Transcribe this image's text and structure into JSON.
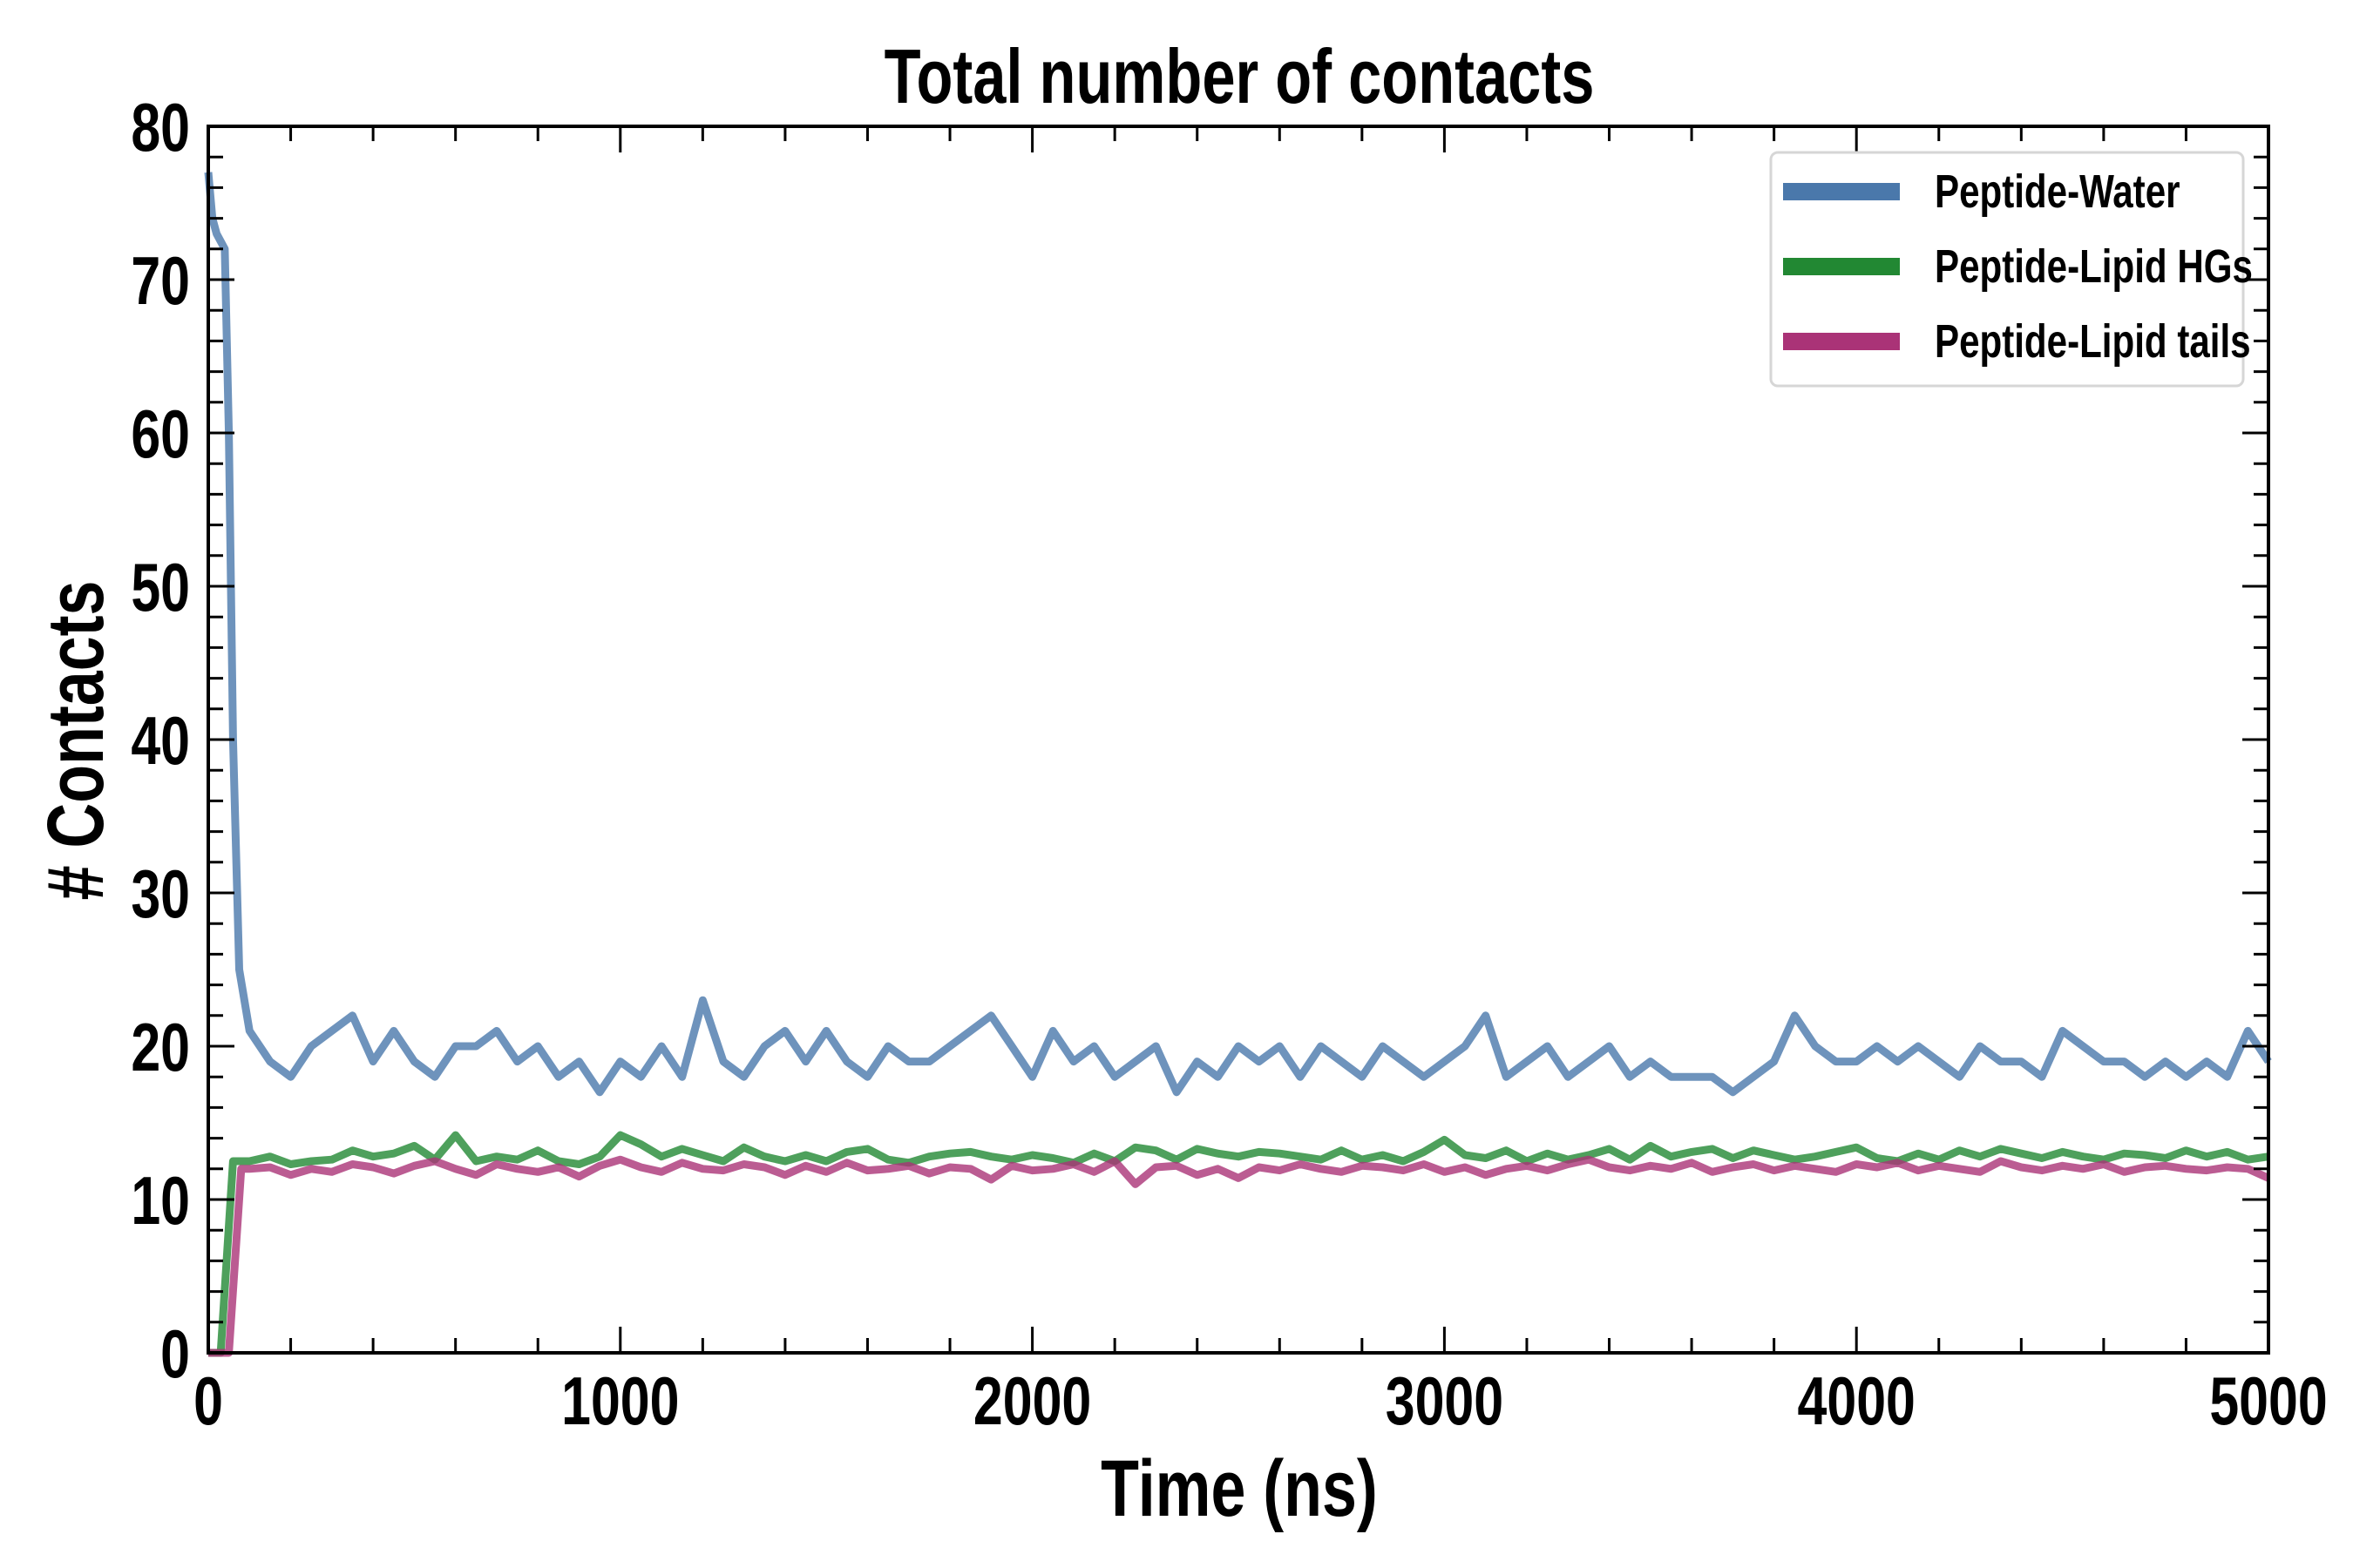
{
  "chart_data": {
    "type": "line",
    "title": "Total number of contacts",
    "xlabel": "Time (ns)",
    "ylabel": "# Contacts",
    "xlim": [
      0,
      5000
    ],
    "ylim": [
      0,
      80
    ],
    "xticks": [
      "0",
      "1000",
      "2000",
      "3000",
      "4000",
      "5000"
    ],
    "yticks": [
      "0",
      "10",
      "20",
      "30",
      "40",
      "50",
      "60",
      "70",
      "80"
    ],
    "grid": false,
    "legend_position": "top-right",
    "series": [
      {
        "name": "Peptide-Water",
        "color": "#4a78ab",
        "early_x": [
          0,
          10,
          20,
          30,
          40,
          50,
          60,
          75
        ],
        "early_y": [
          77,
          74,
          73,
          72.5,
          72,
          60,
          40,
          25
        ],
        "x_start": 100,
        "x_step": 50,
        "values": [
          21,
          19,
          18,
          20,
          21,
          22,
          19,
          21,
          19,
          18,
          20,
          20,
          21,
          19,
          20,
          18,
          19,
          17,
          19,
          18,
          20,
          18,
          23,
          19,
          18,
          20,
          21,
          19,
          21,
          19,
          18,
          20,
          19,
          19,
          20,
          21,
          22,
          20,
          18,
          21,
          19,
          20,
          18,
          19,
          20,
          17,
          19,
          18,
          20,
          19,
          20,
          18,
          20,
          19,
          18,
          20,
          19,
          18,
          19,
          20,
          22,
          18,
          19,
          20,
          18,
          19,
          20,
          18,
          19,
          18,
          18,
          18,
          17,
          18,
          19,
          22,
          20,
          19,
          19,
          20,
          19,
          20,
          19,
          18,
          20,
          19,
          19,
          18,
          21,
          20,
          19,
          19,
          18,
          19,
          18,
          19,
          18,
          21,
          19
        ]
      },
      {
        "name": "Peptide-Lipid HGs",
        "color": "#228833",
        "early_x": [
          0,
          30,
          60
        ],
        "early_y": [
          0,
          0,
          12.5
        ],
        "x_start": 100,
        "x_step": 50,
        "values": [
          12.5,
          12.8,
          12.3,
          12.5,
          12.6,
          13.2,
          12.8,
          13.0,
          13.5,
          12.6,
          14.2,
          12.5,
          12.8,
          12.6,
          13.2,
          12.5,
          12.3,
          12.8,
          14.2,
          13.6,
          12.8,
          13.3,
          12.9,
          12.5,
          13.4,
          12.8,
          12.5,
          12.9,
          12.5,
          13.1,
          13.3,
          12.6,
          12.4,
          12.8,
          13.0,
          13.1,
          12.8,
          12.6,
          12.9,
          12.7,
          12.4,
          13.0,
          12.5,
          13.4,
          13.2,
          12.6,
          13.3,
          13.0,
          12.8,
          13.1,
          13.0,
          12.8,
          12.6,
          13.2,
          12.6,
          12.9,
          12.5,
          13.1,
          13.9,
          12.9,
          12.7,
          13.2,
          12.5,
          13.0,
          12.6,
          12.9,
          13.3,
          12.6,
          13.5,
          12.8,
          13.1,
          13.3,
          12.7,
          13.2,
          12.9,
          12.6,
          12.8,
          13.1,
          13.4,
          12.7,
          12.5,
          13.0,
          12.6,
          13.2,
          12.8,
          13.3,
          13.0,
          12.7,
          13.1,
          12.8,
          12.6,
          13.0,
          12.9,
          12.7,
          13.2,
          12.8,
          13.1,
          12.6,
          12.8
        ]
      },
      {
        "name": "Peptide-Lipid tails",
        "color": "#aa3377",
        "early_x": [
          0,
          50,
          80
        ],
        "early_y": [
          0,
          0,
          12
        ],
        "x_start": 100,
        "x_step": 50,
        "values": [
          12,
          12.1,
          11.6,
          12.0,
          11.8,
          12.3,
          12.1,
          11.7,
          12.2,
          12.5,
          12.0,
          11.6,
          12.3,
          12.0,
          11.8,
          12.1,
          11.5,
          12.2,
          12.6,
          12.1,
          11.8,
          12.4,
          12.0,
          11.9,
          12.3,
          12.1,
          11.6,
          12.2,
          11.8,
          12.4,
          11.9,
          12.0,
          12.2,
          11.7,
          12.1,
          12.0,
          11.3,
          12.2,
          11.9,
          12.0,
          12.3,
          11.8,
          12.5,
          11.0,
          12.1,
          12.2,
          11.6,
          12.0,
          11.4,
          12.1,
          11.9,
          12.3,
          12.0,
          11.8,
          12.2,
          12.1,
          11.9,
          12.3,
          11.8,
          12.1,
          11.6,
          12.0,
          12.2,
          11.9,
          12.3,
          12.6,
          12.1,
          11.9,
          12.2,
          12.0,
          12.4,
          11.8,
          12.1,
          12.3,
          11.9,
          12.2,
          12.0,
          11.8,
          12.3,
          12.1,
          12.4,
          11.9,
          12.2,
          12.0,
          11.8,
          12.5,
          12.1,
          11.9,
          12.2,
          12.0,
          12.3,
          11.8,
          12.1,
          12.2,
          12.0,
          11.9,
          12.1,
          12.0,
          11.4
        ]
      }
    ]
  }
}
